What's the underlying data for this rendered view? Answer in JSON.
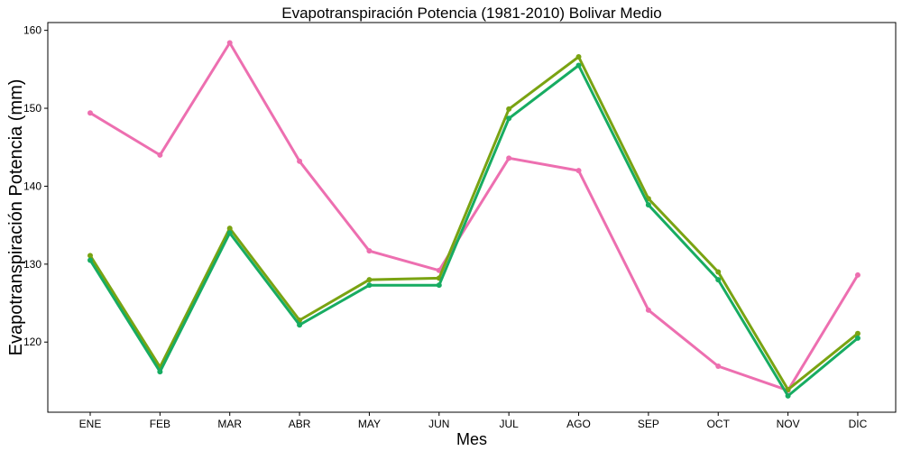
{
  "chart_data": {
    "type": "line",
    "title": "Evapotranspiración Potencia (1981-2010)  Bolivar Medio",
    "xlabel": "Mes",
    "ylabel": "Evapotranspiración Potencia  (mm)",
    "categories": [
      "ENE",
      "FEB",
      "MAR",
      "ABR",
      "MAY",
      "JUN",
      "JUL",
      "AGO",
      "SEP",
      "OCT",
      "NOV",
      "DIC"
    ],
    "ylim": [
      111,
      161
    ],
    "yticks": [
      120,
      130,
      140,
      150,
      160
    ],
    "grid": false,
    "legend": "none",
    "series": [
      {
        "color": "#ed6fb0",
        "values": [
          149.4,
          144.0,
          158.4,
          143.2,
          131.7,
          129.2,
          143.6,
          142.0,
          124.1,
          116.9,
          113.8,
          128.6
        ]
      },
      {
        "color": "#7aa312",
        "values": [
          131.1,
          116.8,
          134.6,
          122.8,
          128.0,
          128.2,
          149.9,
          156.6,
          138.4,
          129.0,
          113.9,
          121.1
        ]
      },
      {
        "color": "#17ac62",
        "values": [
          130.5,
          116.2,
          134.0,
          122.2,
          127.3,
          127.3,
          148.7,
          155.5,
          137.6,
          128.0,
          113.1,
          120.5
        ]
      }
    ]
  }
}
